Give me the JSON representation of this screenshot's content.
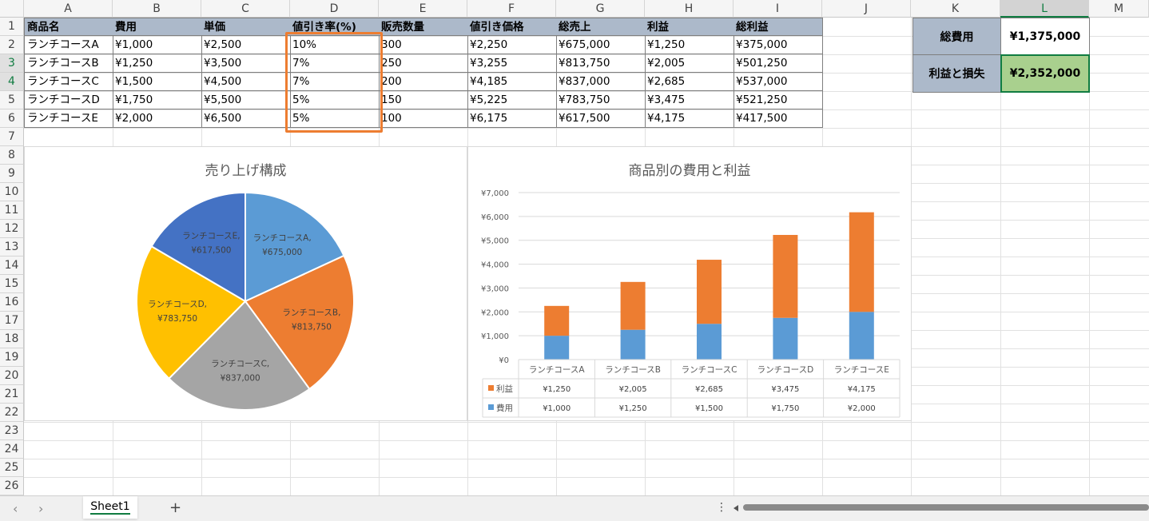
{
  "columns": [
    "A",
    "B",
    "C",
    "D",
    "E",
    "F",
    "G",
    "H",
    "I",
    "J",
    "K",
    "L",
    "M"
  ],
  "selected_column": "L",
  "rows": [
    "1",
    "2",
    "3",
    "4",
    "5",
    "6",
    "7",
    "8",
    "9",
    "10",
    "11",
    "12",
    "13",
    "14",
    "15",
    "16",
    "17",
    "18",
    "19",
    "20",
    "21",
    "22",
    "23",
    "24",
    "25",
    "26"
  ],
  "selected_rows": [
    "3",
    "4"
  ],
  "table": {
    "headers": [
      "商品名",
      "費用",
      "単価",
      "値引き率(%)",
      "販売数量",
      "値引き価格",
      "総売上",
      "利益",
      "総利益"
    ],
    "rows": [
      [
        "ランチコースA",
        "¥1,000",
        "¥2,500",
        "10%",
        "300",
        "¥2,250",
        "¥675,000",
        "¥1,250",
        "¥375,000"
      ],
      [
        "ランチコースB",
        "¥1,250",
        "¥3,500",
        "7%",
        "250",
        "¥3,255",
        "¥813,750",
        "¥2,005",
        "¥501,250"
      ],
      [
        "ランチコースC",
        "¥1,500",
        "¥4,500",
        "7%",
        "200",
        "¥4,185",
        "¥837,000",
        "¥2,685",
        "¥537,000"
      ],
      [
        "ランチコースD",
        "¥1,750",
        "¥5,500",
        "5%",
        "150",
        "¥5,225",
        "¥783,750",
        "¥3,475",
        "¥521,250"
      ],
      [
        "ランチコースE",
        "¥2,000",
        "¥6,500",
        "5%",
        "100",
        "¥6,175",
        "¥617,500",
        "¥4,175",
        "¥417,500"
      ]
    ]
  },
  "summary": {
    "total_cost_label": "総費用",
    "total_cost_value": "¥1,375,000",
    "profit_label": "利益と損失",
    "profit_value": "¥2,352,000"
  },
  "colors": {
    "header_fill": "#acb9ca",
    "highlight_box": "#ed7d31",
    "profit_fill": "#a9d08e",
    "selection": "#107c41"
  },
  "chart_data": [
    {
      "type": "pie",
      "title": "売り上げ構成",
      "categories": [
        "ランチコースA",
        "ランチコースB",
        "ランチコースC",
        "ランチコースD",
        "ランチコースE"
      ],
      "values": [
        675000,
        813750,
        837000,
        783750,
        617500
      ],
      "value_labels": [
        "¥675,000",
        "¥813,750",
        "¥837,000",
        "¥783,750",
        "¥617,500"
      ],
      "colors": [
        "#5b9bd5",
        "#ed7d31",
        "#a5a5a5",
        "#ffc000",
        "#4472c4"
      ]
    },
    {
      "type": "bar",
      "stacked": true,
      "title": "商品別の費用と利益",
      "categories": [
        "ランチコースA",
        "ランチコースB",
        "ランチコースC",
        "ランチコースD",
        "ランチコースE"
      ],
      "series": [
        {
          "name": "利益",
          "values": [
            1250,
            2005,
            2685,
            3475,
            4175
          ],
          "labels": [
            "¥1,250",
            "¥2,005",
            "¥2,685",
            "¥3,475",
            "¥4,175"
          ],
          "color": "#ed7d31"
        },
        {
          "name": "費用",
          "values": [
            1000,
            1250,
            1500,
            1750,
            2000
          ],
          "labels": [
            "¥1,000",
            "¥1,250",
            "¥1,500",
            "¥1,750",
            "¥2,000"
          ],
          "color": "#5b9bd5"
        }
      ],
      "ylim": [
        0,
        7000
      ],
      "yticks": [
        "¥0",
        "¥1,000",
        "¥2,000",
        "¥3,000",
        "¥4,000",
        "¥5,000",
        "¥6,000",
        "¥7,000"
      ],
      "grid": true,
      "legend": "data-table"
    }
  ],
  "tabs": {
    "sheet_name": "Sheet1",
    "add_label": "+",
    "prev_label": "‹",
    "next_label": "›",
    "more_label": "⋮"
  }
}
